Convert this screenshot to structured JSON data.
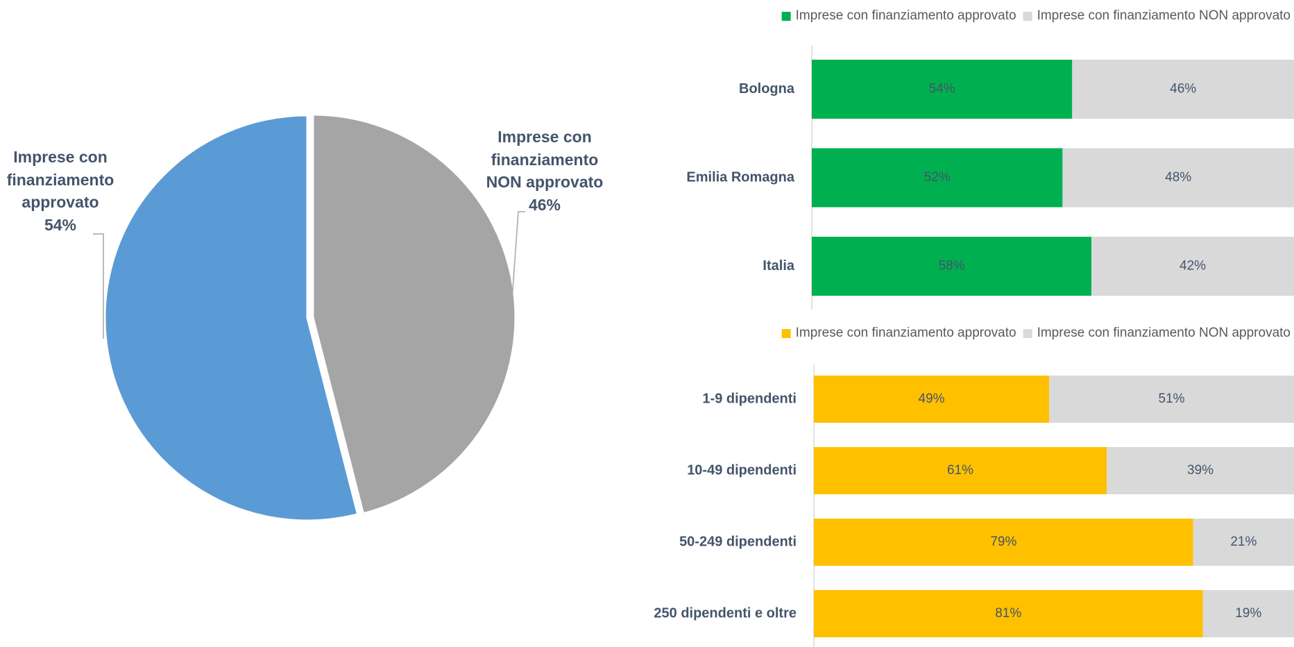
{
  "chart_data": [
    {
      "type": "pie",
      "categories": [
        "Imprese con finanziamento approvato",
        "Imprese con finanziamento NON approvato"
      ],
      "values": [
        54,
        46
      ],
      "value_labels": [
        "54%",
        "46%"
      ],
      "colors": [
        "#5b9bd5",
        "#a5a5a5"
      ]
    },
    {
      "type": "stacked-bar-horizontal",
      "categories": [
        "Bologna",
        "Emilia Romagna",
        "Italia"
      ],
      "series": [
        {
          "name": "Imprese con finanziamento approvato",
          "color": "#00b050",
          "values": [
            54,
            52,
            58
          ],
          "value_labels": [
            "54%",
            "52%",
            "58%"
          ]
        },
        {
          "name": "Imprese con finanziamento NON approvato",
          "color": "#d9d9d9",
          "values": [
            46,
            48,
            42
          ],
          "value_labels": [
            "46%",
            "48%",
            "42%"
          ]
        }
      ],
      "xlim": [
        0,
        100
      ],
      "legend": "top"
    },
    {
      "type": "stacked-bar-horizontal",
      "categories": [
        "1-9 dipendenti",
        "10-49 dipendenti",
        "50-249 dipendenti",
        "250 dipendenti e oltre"
      ],
      "series": [
        {
          "name": "Imprese con finanziamento approvato",
          "color": "#ffc000",
          "values": [
            49,
            61,
            79,
            81
          ],
          "value_labels": [
            "49%",
            "61%",
            "79%",
            "81%"
          ]
        },
        {
          "name": "Imprese con finanziamento NON approvato",
          "color": "#d9d9d9",
          "values": [
            51,
            39,
            21,
            19
          ],
          "value_labels": [
            "51%",
            "39%",
            "21%",
            "19%"
          ]
        }
      ],
      "xlim": [
        0,
        100
      ],
      "legend": "top"
    }
  ]
}
